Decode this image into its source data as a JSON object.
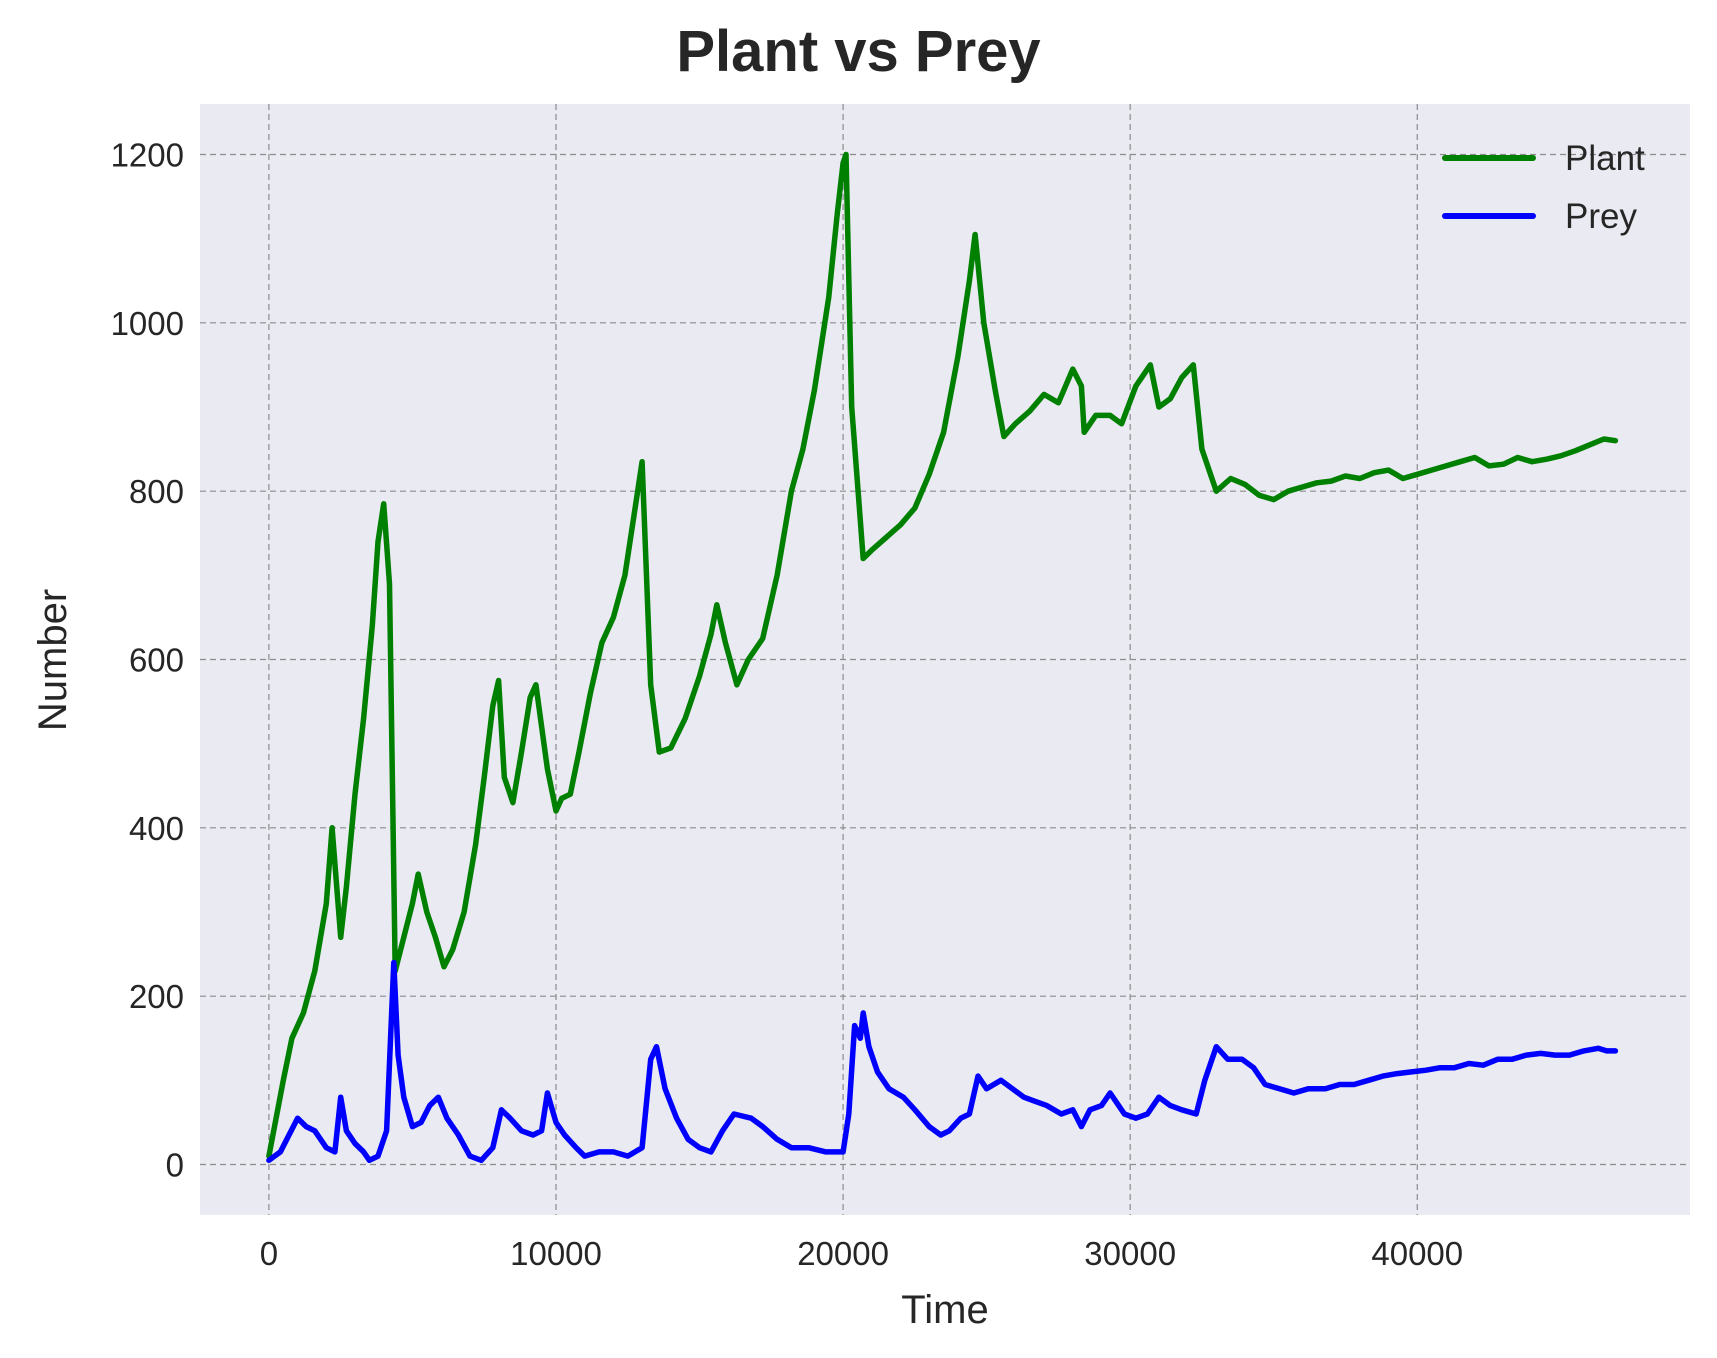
{
  "chart_data": {
    "type": "line",
    "title": "Plant vs Prey",
    "xlabel": "Time",
    "ylabel": "Number",
    "xlim": [
      -2400,
      49500
    ],
    "ylim": [
      -60,
      1260
    ],
    "xticks": [
      0,
      10000,
      20000,
      30000,
      40000
    ],
    "yticks": [
      0,
      200,
      400,
      600,
      800,
      1000,
      1200
    ],
    "grid": true,
    "legend_position": "top-right",
    "background": "#eaeaf2",
    "series": [
      {
        "name": "Plant",
        "color": "#008000",
        "points": [
          [
            0,
            10
          ],
          [
            500,
            100
          ],
          [
            800,
            150
          ],
          [
            1200,
            180
          ],
          [
            1600,
            230
          ],
          [
            2000,
            310
          ],
          [
            2200,
            400
          ],
          [
            2500,
            270
          ],
          [
            2700,
            330
          ],
          [
            3000,
            440
          ],
          [
            3300,
            530
          ],
          [
            3600,
            640
          ],
          [
            3800,
            740
          ],
          [
            4000,
            785
          ],
          [
            4200,
            690
          ],
          [
            4400,
            230
          ],
          [
            4700,
            270
          ],
          [
            5000,
            310
          ],
          [
            5200,
            345
          ],
          [
            5500,
            300
          ],
          [
            5800,
            270
          ],
          [
            6100,
            235
          ],
          [
            6400,
            255
          ],
          [
            6800,
            300
          ],
          [
            7200,
            380
          ],
          [
            7500,
            460
          ],
          [
            7800,
            545
          ],
          [
            8000,
            575
          ],
          [
            8200,
            460
          ],
          [
            8500,
            430
          ],
          [
            8800,
            490
          ],
          [
            9100,
            555
          ],
          [
            9300,
            570
          ],
          [
            9700,
            470
          ],
          [
            10000,
            420
          ],
          [
            10200,
            435
          ],
          [
            10500,
            440
          ],
          [
            10800,
            490
          ],
          [
            11200,
            560
          ],
          [
            11600,
            620
          ],
          [
            12000,
            650
          ],
          [
            12400,
            700
          ],
          [
            12800,
            790
          ],
          [
            13000,
            835
          ],
          [
            13300,
            570
          ],
          [
            13600,
            490
          ],
          [
            14000,
            495
          ],
          [
            14500,
            530
          ],
          [
            15000,
            580
          ],
          [
            15400,
            630
          ],
          [
            15600,
            665
          ],
          [
            15900,
            620
          ],
          [
            16300,
            570
          ],
          [
            16700,
            600
          ],
          [
            17200,
            625
          ],
          [
            17700,
            700
          ],
          [
            18200,
            800
          ],
          [
            18600,
            850
          ],
          [
            19000,
            920
          ],
          [
            19500,
            1030
          ],
          [
            19800,
            1130
          ],
          [
            20000,
            1190
          ],
          [
            20100,
            1200
          ],
          [
            20300,
            900
          ],
          [
            20700,
            720
          ],
          [
            21000,
            730
          ],
          [
            21500,
            745
          ],
          [
            22000,
            760
          ],
          [
            22500,
            780
          ],
          [
            23000,
            820
          ],
          [
            23500,
            870
          ],
          [
            24000,
            960
          ],
          [
            24400,
            1050
          ],
          [
            24600,
            1105
          ],
          [
            24900,
            1000
          ],
          [
            25300,
            920
          ],
          [
            25600,
            865
          ],
          [
            26000,
            880
          ],
          [
            26500,
            895
          ],
          [
            27000,
            915
          ],
          [
            27500,
            905
          ],
          [
            28000,
            945
          ],
          [
            28300,
            925
          ],
          [
            28400,
            870
          ],
          [
            28800,
            890
          ],
          [
            29300,
            890
          ],
          [
            29700,
            880
          ],
          [
            30200,
            925
          ],
          [
            30700,
            950
          ],
          [
            31000,
            900
          ],
          [
            31400,
            910
          ],
          [
            31800,
            935
          ],
          [
            32200,
            950
          ],
          [
            32500,
            850
          ],
          [
            33000,
            800
          ],
          [
            33500,
            815
          ],
          [
            34000,
            808
          ],
          [
            34500,
            795
          ],
          [
            35000,
            790
          ],
          [
            35500,
            800
          ],
          [
            36000,
            805
          ],
          [
            36500,
            810
          ],
          [
            37000,
            812
          ],
          [
            37500,
            818
          ],
          [
            38000,
            815
          ],
          [
            38500,
            822
          ],
          [
            39000,
            825
          ],
          [
            39500,
            815
          ],
          [
            40000,
            820
          ],
          [
            40500,
            825
          ],
          [
            41000,
            830
          ],
          [
            41500,
            835
          ],
          [
            42000,
            840
          ],
          [
            42500,
            830
          ],
          [
            43000,
            832
          ],
          [
            43500,
            840
          ],
          [
            44000,
            835
          ],
          [
            44500,
            838
          ],
          [
            45000,
            842
          ],
          [
            45500,
            848
          ],
          [
            46000,
            855
          ],
          [
            46500,
            862
          ],
          [
            46900,
            860
          ]
        ]
      },
      {
        "name": "Prey",
        "color": "#0000ff",
        "points": [
          [
            0,
            5
          ],
          [
            400,
            15
          ],
          [
            700,
            35
          ],
          [
            1000,
            55
          ],
          [
            1300,
            45
          ],
          [
            1600,
            40
          ],
          [
            2000,
            20
          ],
          [
            2300,
            15
          ],
          [
            2500,
            80
          ],
          [
            2700,
            40
          ],
          [
            3000,
            25
          ],
          [
            3300,
            15
          ],
          [
            3500,
            5
          ],
          [
            3800,
            10
          ],
          [
            4100,
            40
          ],
          [
            4350,
            240
          ],
          [
            4500,
            130
          ],
          [
            4700,
            80
          ],
          [
            5000,
            45
          ],
          [
            5300,
            50
          ],
          [
            5600,
            70
          ],
          [
            5900,
            80
          ],
          [
            6200,
            55
          ],
          [
            6600,
            35
          ],
          [
            7000,
            10
          ],
          [
            7400,
            5
          ],
          [
            7800,
            20
          ],
          [
            8100,
            65
          ],
          [
            8400,
            55
          ],
          [
            8800,
            40
          ],
          [
            9200,
            35
          ],
          [
            9500,
            40
          ],
          [
            9700,
            85
          ],
          [
            10000,
            50
          ],
          [
            10300,
            35
          ],
          [
            10700,
            20
          ],
          [
            11000,
            10
          ],
          [
            11500,
            15
          ],
          [
            12000,
            15
          ],
          [
            12500,
            10
          ],
          [
            13000,
            20
          ],
          [
            13300,
            125
          ],
          [
            13500,
            140
          ],
          [
            13800,
            90
          ],
          [
            14200,
            55
          ],
          [
            14600,
            30
          ],
          [
            15000,
            20
          ],
          [
            15400,
            15
          ],
          [
            15800,
            40
          ],
          [
            16200,
            60
          ],
          [
            16800,
            55
          ],
          [
            17200,
            45
          ],
          [
            17700,
            30
          ],
          [
            18200,
            20
          ],
          [
            18800,
            20
          ],
          [
            19400,
            15
          ],
          [
            20000,
            15
          ],
          [
            20200,
            60
          ],
          [
            20400,
            165
          ],
          [
            20600,
            150
          ],
          [
            20700,
            180
          ],
          [
            20900,
            140
          ],
          [
            21200,
            110
          ],
          [
            21600,
            90
          ],
          [
            22100,
            80
          ],
          [
            22500,
            65
          ],
          [
            23000,
            45
          ],
          [
            23400,
            35
          ],
          [
            23700,
            40
          ],
          [
            24100,
            55
          ],
          [
            24400,
            60
          ],
          [
            24700,
            105
          ],
          [
            25000,
            90
          ],
          [
            25500,
            100
          ],
          [
            25900,
            90
          ],
          [
            26300,
            80
          ],
          [
            26700,
            75
          ],
          [
            27100,
            70
          ],
          [
            27600,
            60
          ],
          [
            28000,
            65
          ],
          [
            28300,
            45
          ],
          [
            28600,
            65
          ],
          [
            29000,
            70
          ],
          [
            29300,
            85
          ],
          [
            29800,
            60
          ],
          [
            30200,
            55
          ],
          [
            30600,
            60
          ],
          [
            31000,
            80
          ],
          [
            31400,
            70
          ],
          [
            31800,
            65
          ],
          [
            32300,
            60
          ],
          [
            32600,
            100
          ],
          [
            33000,
            140
          ],
          [
            33400,
            125
          ],
          [
            33900,
            125
          ],
          [
            34300,
            115
          ],
          [
            34700,
            95
          ],
          [
            35200,
            90
          ],
          [
            35700,
            85
          ],
          [
            36200,
            90
          ],
          [
            36800,
            90
          ],
          [
            37300,
            95
          ],
          [
            37800,
            95
          ],
          [
            38300,
            100
          ],
          [
            38800,
            105
          ],
          [
            39300,
            108
          ],
          [
            39800,
            110
          ],
          [
            40300,
            112
          ],
          [
            40800,
            115
          ],
          [
            41300,
            115
          ],
          [
            41800,
            120
          ],
          [
            42300,
            118
          ],
          [
            42800,
            125
          ],
          [
            43300,
            125
          ],
          [
            43800,
            130
          ],
          [
            44300,
            132
          ],
          [
            44800,
            130
          ],
          [
            45300,
            130
          ],
          [
            45800,
            135
          ],
          [
            46300,
            138
          ],
          [
            46600,
            135
          ],
          [
            46900,
            135
          ]
        ]
      }
    ]
  }
}
